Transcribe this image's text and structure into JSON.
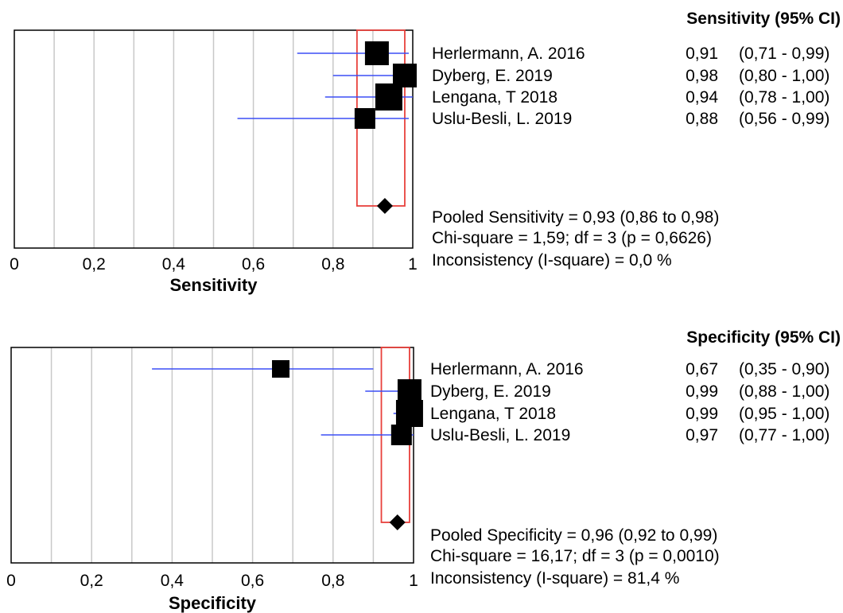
{
  "chart_data": [
    {
      "type": "forest",
      "xlabel": "Sensitivity",
      "xlim": [
        0,
        1
      ],
      "tick_labels": [
        "0",
        "0,2",
        "0,4",
        "0,6",
        "0,8",
        "1"
      ],
      "header": "Sensitivity (95% CI)",
      "studies": [
        {
          "name": "Herlermann, A. 2016",
          "est": 0.91,
          "lo": 0.71,
          "hi": 0.99,
          "est_label": "0,91",
          "ci_label": "(0,71 - 0,99)",
          "weight": 4
        },
        {
          "name": "Dyberg, E. 2019",
          "est": 0.98,
          "lo": 0.8,
          "hi": 1.0,
          "est_label": "0,98",
          "ci_label": "(0,80 - 1,00)",
          "weight": 4
        },
        {
          "name": "Lengana, T 2018",
          "est": 0.94,
          "lo": 0.78,
          "hi": 1.0,
          "est_label": "0,94",
          "ci_label": "(0,78 - 1,00)",
          "weight": 5
        },
        {
          "name": "Uslu-Besli, L. 2019",
          "est": 0.88,
          "lo": 0.56,
          "hi": 0.99,
          "est_label": "0,88",
          "ci_label": "(0,56 - 0,99)",
          "weight": 3
        }
      ],
      "pooled": {
        "est": 0.93,
        "lo": 0.86,
        "hi": 0.98
      },
      "stats": [
        "Pooled Sensitivity = 0,93 (0,86 to 0,98)",
        "Chi-square = 1,59; df =  3 (p = 0,6626)",
        "Inconsistency (I-square) = 0,0 %"
      ],
      "colors": {
        "ci_line": "#3b4ef5",
        "pooled_box": "#e8413c",
        "marker": "#000000",
        "grid": "#c8c8c8"
      }
    },
    {
      "type": "forest",
      "xlabel": "Specificity",
      "xlim": [
        0,
        1
      ],
      "tick_labels": [
        "0",
        "0,2",
        "0,4",
        "0,6",
        "0,8",
        "1"
      ],
      "header": "Specificity (95% CI)",
      "studies": [
        {
          "name": "Herlermann, A. 2016",
          "est": 0.67,
          "lo": 0.35,
          "hi": 0.9,
          "est_label": "0,67",
          "ci_label": "(0,35 - 0,90)",
          "weight": 2
        },
        {
          "name": "Dyberg, E. 2019",
          "est": 0.99,
          "lo": 0.88,
          "hi": 1.0,
          "est_label": "0,99",
          "ci_label": "(0,88 - 1,00)",
          "weight": 4
        },
        {
          "name": "Lengana, T 2018",
          "est": 0.99,
          "lo": 0.95,
          "hi": 1.0,
          "est_label": "0,99",
          "ci_label": "(0,95 - 1,00)",
          "weight": 5
        },
        {
          "name": "Uslu-Besli, L. 2019",
          "est": 0.97,
          "lo": 0.77,
          "hi": 1.0,
          "est_label": "0,97",
          "ci_label": "(0,77 - 1,00)",
          "weight": 3
        }
      ],
      "pooled": {
        "est": 0.96,
        "lo": 0.92,
        "hi": 0.99
      },
      "stats": [
        "Pooled Specificity = 0,96 (0,92 to 0,99)",
        "Chi-square = 16,17; df =  3 (p = 0,0010)",
        "Inconsistency (I-square) = 81,4 %"
      ],
      "colors": {
        "ci_line": "#3b4ef5",
        "pooled_box": "#e8413c",
        "marker": "#000000",
        "grid": "#c8c8c8"
      }
    }
  ]
}
